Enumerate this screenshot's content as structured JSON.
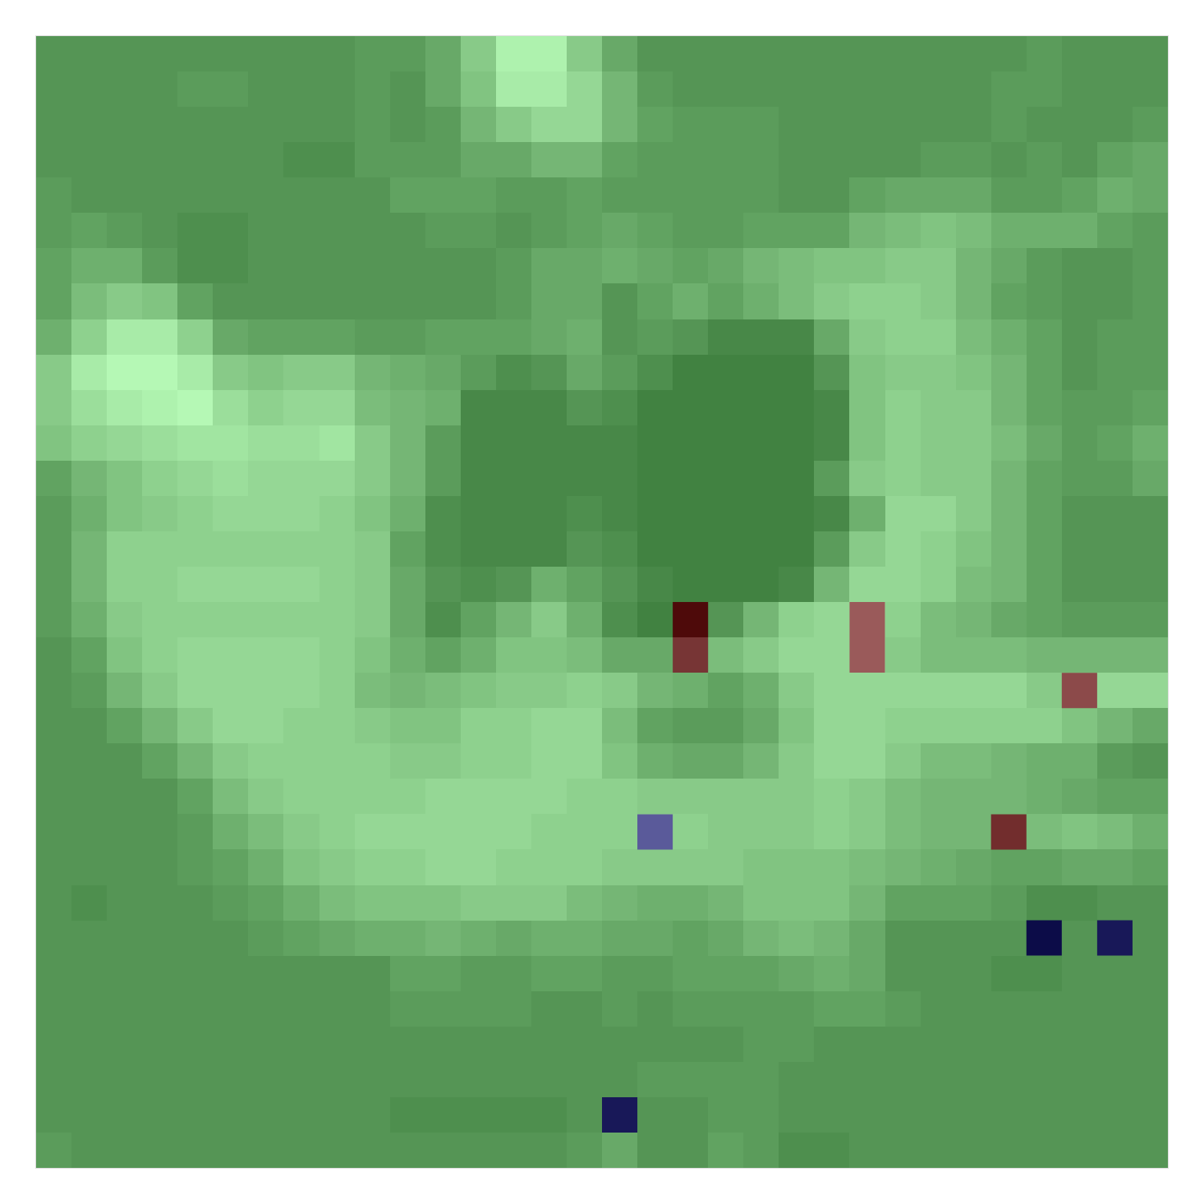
{
  "chart_data": {
    "type": "heatmap",
    "tick_labels": false,
    "xlim": [
      -0.5,
      31.5
    ],
    "ylim": [
      31.5,
      -0.5
    ],
    "zlim": [
      0,
      1
    ],
    "colors": [
      "#3b7b3b",
      "#bbffbb"
    ],
    "cells": [
      [
        0.2,
        0.2,
        0.2,
        0.2,
        0.2,
        0.2,
        0.2,
        0.2,
        0.2,
        0.25,
        0.25,
        0.35,
        0.6,
        0.9,
        0.9,
        0.6,
        0.35,
        0.2,
        0.2,
        0.2,
        0.2,
        0.2,
        0.2,
        0.2,
        0.2,
        0.2,
        0.2,
        0.2,
        0.25,
        0.2,
        0.2,
        0.2
      ],
      [
        0.2,
        0.2,
        0.2,
        0.2,
        0.25,
        0.25,
        0.2,
        0.2,
        0.2,
        0.25,
        0.2,
        0.35,
        0.55,
        0.85,
        0.85,
        0.7,
        0.45,
        0.25,
        0.2,
        0.2,
        0.2,
        0.2,
        0.2,
        0.2,
        0.2,
        0.2,
        0.2,
        0.25,
        0.25,
        0.2,
        0.2,
        0.2
      ],
      [
        0.2,
        0.2,
        0.2,
        0.2,
        0.2,
        0.2,
        0.2,
        0.2,
        0.2,
        0.25,
        0.2,
        0.25,
        0.45,
        0.6,
        0.7,
        0.7,
        0.45,
        0.3,
        0.25,
        0.25,
        0.25,
        0.2,
        0.2,
        0.2,
        0.2,
        0.2,
        0.2,
        0.25,
        0.2,
        0.2,
        0.2,
        0.25
      ],
      [
        0.2,
        0.2,
        0.2,
        0.2,
        0.2,
        0.2,
        0.2,
        0.15,
        0.15,
        0.25,
        0.25,
        0.25,
        0.35,
        0.35,
        0.45,
        0.45,
        0.3,
        0.25,
        0.25,
        0.25,
        0.25,
        0.2,
        0.2,
        0.2,
        0.2,
        0.25,
        0.25,
        0.2,
        0.25,
        0.2,
        0.3,
        0.35
      ],
      [
        0.25,
        0.2,
        0.2,
        0.2,
        0.2,
        0.2,
        0.2,
        0.2,
        0.2,
        0.2,
        0.3,
        0.3,
        0.3,
        0.25,
        0.25,
        0.3,
        0.25,
        0.25,
        0.25,
        0.25,
        0.25,
        0.2,
        0.2,
        0.3,
        0.35,
        0.35,
        0.35,
        0.25,
        0.25,
        0.3,
        0.4,
        0.35
      ],
      [
        0.25,
        0.3,
        0.25,
        0.2,
        0.15,
        0.15,
        0.2,
        0.2,
        0.2,
        0.2,
        0.2,
        0.25,
        0.25,
        0.2,
        0.25,
        0.3,
        0.35,
        0.3,
        0.25,
        0.25,
        0.3,
        0.3,
        0.3,
        0.45,
        0.5,
        0.55,
        0.5,
        0.4,
        0.4,
        0.4,
        0.3,
        0.25
      ],
      [
        0.3,
        0.4,
        0.4,
        0.25,
        0.15,
        0.15,
        0.2,
        0.2,
        0.2,
        0.2,
        0.2,
        0.2,
        0.2,
        0.25,
        0.35,
        0.35,
        0.4,
        0.35,
        0.3,
        0.35,
        0.45,
        0.5,
        0.55,
        0.55,
        0.6,
        0.6,
        0.45,
        0.35,
        0.25,
        0.2,
        0.2,
        0.25
      ],
      [
        0.3,
        0.5,
        0.6,
        0.55,
        0.3,
        0.2,
        0.2,
        0.2,
        0.2,
        0.2,
        0.2,
        0.2,
        0.2,
        0.25,
        0.35,
        0.35,
        0.2,
        0.3,
        0.4,
        0.3,
        0.4,
        0.5,
        0.6,
        0.65,
        0.65,
        0.6,
        0.45,
        0.3,
        0.25,
        0.2,
        0.2,
        0.25
      ],
      [
        0.4,
        0.65,
        0.85,
        0.85,
        0.65,
        0.35,
        0.3,
        0.3,
        0.3,
        0.25,
        0.25,
        0.3,
        0.3,
        0.3,
        0.35,
        0.4,
        0.2,
        0.25,
        0.2,
        0.1,
        0.1,
        0.1,
        0.35,
        0.6,
        0.65,
        0.65,
        0.5,
        0.4,
        0.3,
        0.2,
        0.25,
        0.25
      ],
      [
        0.6,
        0.85,
        0.95,
        0.95,
        0.85,
        0.6,
        0.55,
        0.6,
        0.6,
        0.45,
        0.4,
        0.35,
        0.25,
        0.15,
        0.2,
        0.35,
        0.25,
        0.15,
        0.05,
        0.05,
        0.05,
        0.05,
        0.2,
        0.55,
        0.6,
        0.6,
        0.55,
        0.45,
        0.3,
        0.2,
        0.25,
        0.25
      ],
      [
        0.6,
        0.75,
        0.85,
        0.9,
        0.95,
        0.75,
        0.65,
        0.7,
        0.7,
        0.5,
        0.45,
        0.4,
        0.1,
        0.1,
        0.1,
        0.2,
        0.15,
        0.05,
        0.05,
        0.05,
        0.05,
        0.05,
        0.1,
        0.55,
        0.65,
        0.6,
        0.6,
        0.45,
        0.3,
        0.25,
        0.25,
        0.3
      ],
      [
        0.55,
        0.65,
        0.7,
        0.75,
        0.8,
        0.8,
        0.75,
        0.75,
        0.8,
        0.6,
        0.45,
        0.25,
        0.1,
        0.1,
        0.1,
        0.1,
        0.1,
        0.05,
        0.05,
        0.05,
        0.05,
        0.05,
        0.1,
        0.55,
        0.65,
        0.6,
        0.6,
        0.5,
        0.35,
        0.25,
        0.3,
        0.4
      ],
      [
        0.3,
        0.45,
        0.55,
        0.65,
        0.7,
        0.75,
        0.7,
        0.7,
        0.7,
        0.6,
        0.45,
        0.25,
        0.1,
        0.1,
        0.1,
        0.1,
        0.1,
        0.05,
        0.05,
        0.05,
        0.05,
        0.05,
        0.25,
        0.6,
        0.65,
        0.6,
        0.6,
        0.45,
        0.3,
        0.25,
        0.25,
        0.35
      ],
      [
        0.25,
        0.4,
        0.55,
        0.6,
        0.65,
        0.7,
        0.7,
        0.7,
        0.65,
        0.55,
        0.4,
        0.15,
        0.1,
        0.1,
        0.1,
        0.15,
        0.1,
        0.05,
        0.05,
        0.05,
        0.05,
        0.05,
        0.1,
        0.4,
        0.7,
        0.7,
        0.6,
        0.45,
        0.3,
        0.2,
        0.2,
        0.2
      ],
      [
        0.25,
        0.45,
        0.65,
        0.65,
        0.65,
        0.65,
        0.65,
        0.65,
        0.65,
        0.6,
        0.3,
        0.15,
        0.1,
        0.1,
        0.1,
        0.2,
        0.15,
        0.05,
        0.05,
        0.05,
        0.05,
        0.05,
        0.25,
        0.6,
        0.7,
        0.65,
        0.55,
        0.45,
        0.3,
        0.2,
        0.2,
        0.2
      ],
      [
        0.25,
        0.45,
        0.65,
        0.65,
        0.7,
        0.7,
        0.7,
        0.7,
        0.65,
        0.6,
        0.35,
        0.2,
        0.15,
        0.2,
        0.4,
        0.3,
        0.2,
        0.1,
        0.05,
        0.05,
        0.05,
        0.1,
        0.45,
        0.7,
        0.7,
        0.65,
        0.5,
        0.45,
        0.3,
        0.2,
        0.2,
        0.2
      ],
      [
        0.25,
        0.4,
        0.6,
        0.65,
        0.65,
        0.65,
        0.65,
        0.65,
        0.65,
        0.6,
        0.35,
        0.15,
        0.3,
        0.45,
        0.6,
        0.4,
        0.15,
        0.05,
        0.05,
        0.2,
        0.45,
        0.65,
        0.7,
        0.7,
        0.65,
        0.5,
        0.45,
        0.35,
        0.3,
        0.25,
        0.25,
        0.25
      ],
      [
        0.2,
        0.3,
        0.55,
        0.65,
        0.7,
        0.7,
        0.7,
        0.7,
        0.65,
        0.55,
        0.4,
        0.3,
        0.4,
        0.55,
        0.55,
        0.5,
        0.35,
        0.35,
        0.35,
        0.5,
        0.6,
        0.7,
        0.7,
        0.7,
        0.6,
        0.5,
        0.5,
        0.5,
        0.45,
        0.45,
        0.45,
        0.45
      ],
      [
        0.2,
        0.25,
        0.45,
        0.6,
        0.7,
        0.7,
        0.7,
        0.7,
        0.65,
        0.5,
        0.45,
        0.5,
        0.55,
        0.6,
        0.6,
        0.65,
        0.6,
        0.45,
        0.4,
        0.3,
        0.4,
        0.6,
        0.7,
        0.7,
        0.7,
        0.7,
        0.7,
        0.7,
        0.6,
        0.6,
        0.7,
        0.7
      ],
      [
        0.2,
        0.2,
        0.3,
        0.45,
        0.6,
        0.7,
        0.7,
        0.65,
        0.65,
        0.6,
        0.55,
        0.55,
        0.65,
        0.65,
        0.7,
        0.7,
        0.5,
        0.3,
        0.25,
        0.25,
        0.35,
        0.55,
        0.7,
        0.7,
        0.65,
        0.65,
        0.65,
        0.65,
        0.65,
        0.55,
        0.45,
        0.35
      ],
      [
        0.2,
        0.2,
        0.2,
        0.3,
        0.45,
        0.6,
        0.65,
        0.65,
        0.65,
        0.65,
        0.6,
        0.6,
        0.65,
        0.65,
        0.7,
        0.7,
        0.55,
        0.4,
        0.35,
        0.35,
        0.45,
        0.6,
        0.7,
        0.7,
        0.6,
        0.5,
        0.5,
        0.45,
        0.4,
        0.4,
        0.25,
        0.2
      ],
      [
        0.2,
        0.2,
        0.2,
        0.2,
        0.3,
        0.5,
        0.6,
        0.65,
        0.65,
        0.65,
        0.65,
        0.7,
        0.7,
        0.7,
        0.7,
        0.65,
        0.65,
        0.6,
        0.6,
        0.6,
        0.6,
        0.6,
        0.65,
        0.6,
        0.5,
        0.45,
        0.45,
        0.45,
        0.4,
        0.35,
        0.3,
        0.3
      ],
      [
        0.2,
        0.2,
        0.2,
        0.2,
        0.25,
        0.4,
        0.5,
        0.6,
        0.65,
        0.7,
        0.7,
        0.7,
        0.7,
        0.7,
        0.65,
        0.65,
        0.65,
        0.65,
        0.65,
        0.6,
        0.6,
        0.6,
        0.65,
        0.6,
        0.5,
        0.45,
        0.45,
        0.45,
        0.5,
        0.55,
        0.5,
        0.4
      ],
      [
        0.2,
        0.2,
        0.2,
        0.2,
        0.25,
        0.3,
        0.4,
        0.55,
        0.6,
        0.65,
        0.65,
        0.7,
        0.7,
        0.65,
        0.65,
        0.65,
        0.6,
        0.6,
        0.6,
        0.6,
        0.55,
        0.55,
        0.55,
        0.5,
        0.45,
        0.4,
        0.35,
        0.3,
        0.3,
        0.35,
        0.35,
        0.3
      ],
      [
        0.2,
        0.15,
        0.2,
        0.2,
        0.2,
        0.25,
        0.3,
        0.4,
        0.5,
        0.55,
        0.55,
        0.55,
        0.6,
        0.6,
        0.6,
        0.5,
        0.45,
        0.4,
        0.4,
        0.45,
        0.55,
        0.55,
        0.55,
        0.45,
        0.3,
        0.3,
        0.3,
        0.25,
        0.15,
        0.15,
        0.2,
        0.2
      ],
      [
        0.2,
        0.2,
        0.2,
        0.2,
        0.2,
        0.2,
        0.25,
        0.3,
        0.35,
        0.4,
        0.4,
        0.45,
        0.4,
        0.35,
        0.4,
        0.4,
        0.35,
        0.35,
        0.3,
        0.35,
        0.45,
        0.5,
        0.45,
        0.35,
        0.2,
        0.2,
        0.2,
        0.2,
        0.2,
        0.2,
        0.2,
        0.2
      ],
      [
        0.2,
        0.2,
        0.2,
        0.2,
        0.2,
        0.2,
        0.2,
        0.2,
        0.2,
        0.2,
        0.3,
        0.3,
        0.25,
        0.25,
        0.3,
        0.3,
        0.25,
        0.25,
        0.3,
        0.3,
        0.3,
        0.35,
        0.4,
        0.35,
        0.2,
        0.2,
        0.2,
        0.15,
        0.15,
        0.2,
        0.2,
        0.2
      ],
      [
        0.2,
        0.2,
        0.2,
        0.2,
        0.2,
        0.2,
        0.2,
        0.2,
        0.2,
        0.2,
        0.25,
        0.25,
        0.25,
        0.25,
        0.2,
        0.2,
        0.25,
        0.2,
        0.25,
        0.25,
        0.25,
        0.25,
        0.3,
        0.3,
        0.25,
        0.2,
        0.2,
        0.2,
        0.2,
        0.2,
        0.2,
        0.2
      ],
      [
        0.2,
        0.2,
        0.2,
        0.2,
        0.2,
        0.2,
        0.2,
        0.2,
        0.2,
        0.2,
        0.2,
        0.2,
        0.2,
        0.2,
        0.2,
        0.2,
        0.2,
        0.2,
        0.2,
        0.2,
        0.25,
        0.25,
        0.2,
        0.2,
        0.2,
        0.2,
        0.2,
        0.2,
        0.2,
        0.2,
        0.2,
        0.2
      ],
      [
        0.2,
        0.2,
        0.2,
        0.2,
        0.2,
        0.2,
        0.2,
        0.2,
        0.2,
        0.2,
        0.2,
        0.2,
        0.2,
        0.2,
        0.2,
        0.2,
        0.2,
        0.25,
        0.25,
        0.25,
        0.25,
        0.2,
        0.2,
        0.2,
        0.2,
        0.2,
        0.2,
        0.2,
        0.2,
        0.2,
        0.2,
        0.2
      ],
      [
        0.2,
        0.2,
        0.2,
        0.2,
        0.2,
        0.2,
        0.2,
        0.2,
        0.2,
        0.2,
        0.15,
        0.15,
        0.15,
        0.15,
        0.15,
        0.2,
        0.2,
        0.2,
        0.2,
        0.25,
        0.25,
        0.2,
        0.2,
        0.2,
        0.2,
        0.2,
        0.2,
        0.2,
        0.2,
        0.2,
        0.2,
        0.2
      ],
      [
        0.25,
        0.2,
        0.2,
        0.2,
        0.2,
        0.2,
        0.2,
        0.2,
        0.2,
        0.2,
        0.2,
        0.2,
        0.2,
        0.2,
        0.2,
        0.25,
        0.35,
        0.2,
        0.2,
        0.3,
        0.25,
        0.15,
        0.15,
        0.2,
        0.2,
        0.2,
        0.2,
        0.2,
        0.2,
        0.2,
        0.2,
        0.2
      ]
    ],
    "series": [
      {
        "type": "scatter",
        "marker": "square",
        "x": [
          18,
          18,
          23,
          23,
          29,
          17,
          27,
          28,
          30,
          16
        ],
        "y": [
          16,
          17,
          16,
          17,
          18,
          22,
          22,
          25,
          25,
          30
        ],
        "colors": [
          "#4e0a0a",
          "#773535",
          "#9a5a5a",
          "#9a5a5a",
          "#8c4a4a",
          "#5a5a9a",
          "#722d2d",
          "#0c0c48",
          "#181858",
          "#181858"
        ]
      }
    ]
  }
}
